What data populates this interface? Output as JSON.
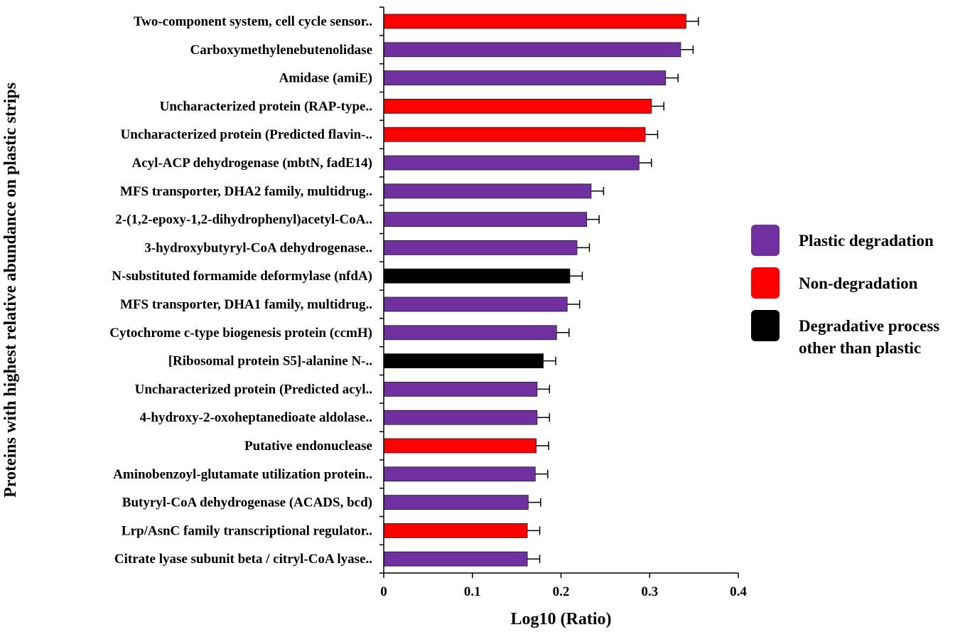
{
  "chart_data": {
    "type": "bar",
    "orientation": "horizontal",
    "title": "",
    "xlabel": "Log10 (Ratio)",
    "ylabel": "Proteins with highest relative abundance on plastic strips",
    "xlim": [
      0,
      0.4
    ],
    "xticks": [
      "0",
      "0.1",
      "0.2",
      "0.3",
      "0.4"
    ],
    "xtick_values": [
      0,
      0.1,
      0.2,
      0.3,
      0.4
    ],
    "grid": false,
    "legend_position": "right",
    "colors": {
      "plastic": "#7030a0",
      "non": "#ff0000",
      "other": "#000000",
      "error_bar": "#000000"
    },
    "legend": [
      {
        "group": "plastic",
        "lines": [
          "Plastic degradation"
        ]
      },
      {
        "group": "non",
        "lines": [
          "Non-degradation"
        ]
      },
      {
        "group": "other",
        "lines": [
          "Degradative process",
          "other than plastic"
        ]
      }
    ],
    "bars": [
      {
        "label": "Two-component system, cell cycle sensor..",
        "value": 0.341,
        "error": 0.014,
        "group": "non"
      },
      {
        "label": "Carboxymethylenebutenolidase",
        "value": 0.335,
        "error": 0.014,
        "group": "plastic"
      },
      {
        "label": "Amidase (amiE)",
        "value": 0.318,
        "error": 0.014,
        "group": "plastic"
      },
      {
        "label": "Uncharacterized protein (RAP-type..",
        "value": 0.302,
        "error": 0.014,
        "group": "non"
      },
      {
        "label": "Uncharacterized protein (Predicted flavin-..",
        "value": 0.295,
        "error": 0.014,
        "group": "non"
      },
      {
        "label": "Acyl-ACP dehydrogenase (mbtN, fadE14)",
        "value": 0.288,
        "error": 0.014,
        "group": "plastic"
      },
      {
        "label": "MFS transporter, DHA2 family, multidrug..",
        "value": 0.234,
        "error": 0.014,
        "group": "plastic"
      },
      {
        "label": "2-(1,2-epoxy-1,2-dihydrophenyl)acetyl-CoA..",
        "value": 0.229,
        "error": 0.014,
        "group": "plastic"
      },
      {
        "label": "3-hydroxybutyryl-CoA dehydrogenase..",
        "value": 0.218,
        "error": 0.014,
        "group": "plastic"
      },
      {
        "label": "N-substituted formamide deformylase (nfdA)",
        "value": 0.21,
        "error": 0.014,
        "group": "other"
      },
      {
        "label": "MFS transporter, DHA1 family, multidrug..",
        "value": 0.207,
        "error": 0.014,
        "group": "plastic"
      },
      {
        "label": "Cytochrome c-type biogenesis protein (ccmH)",
        "value": 0.195,
        "error": 0.014,
        "group": "plastic"
      },
      {
        "label": "[Ribosomal protein S5]-alanine N-..",
        "value": 0.18,
        "error": 0.014,
        "group": "other"
      },
      {
        "label": "Uncharacterized protein (Predicted acyl..",
        "value": 0.173,
        "error": 0.014,
        "group": "plastic"
      },
      {
        "label": "4-hydroxy-2-oxoheptanedioate aldolase..",
        "value": 0.173,
        "error": 0.014,
        "group": "plastic"
      },
      {
        "label": "Putative endonuclease",
        "value": 0.172,
        "error": 0.014,
        "group": "non"
      },
      {
        "label": "Aminobenzoyl-glutamate utilization protein..",
        "value": 0.171,
        "error": 0.014,
        "group": "plastic"
      },
      {
        "label": "Butyryl-CoA dehydrogenase (ACADS, bcd)",
        "value": 0.163,
        "error": 0.014,
        "group": "plastic"
      },
      {
        "label": "Lrp/AsnC family transcriptional regulator..",
        "value": 0.162,
        "error": 0.014,
        "group": "non"
      },
      {
        "label": "Citrate lyase subunit beta / citryl-CoA lyase..",
        "value": 0.162,
        "error": 0.014,
        "group": "plastic"
      }
    ]
  }
}
